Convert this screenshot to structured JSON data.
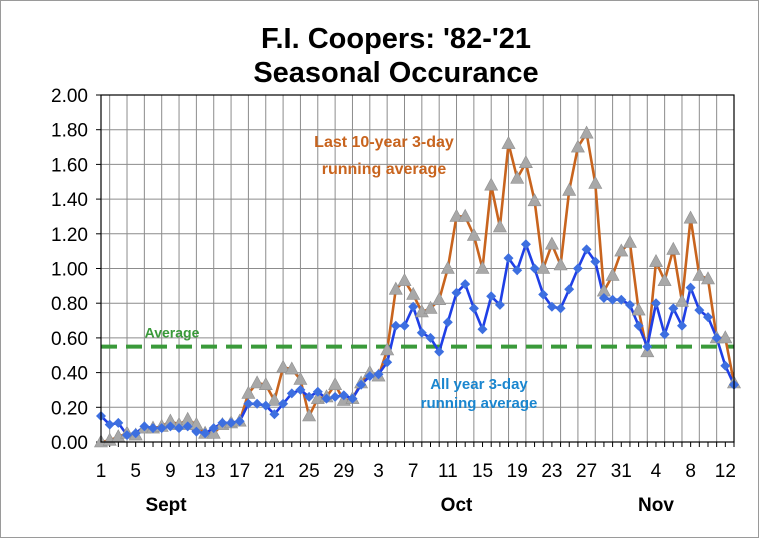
{
  "chart_data": {
    "type": "line",
    "title_lines": [
      "F.I. Coopers: '82-'21",
      "Seasonal Occurance"
    ],
    "ylim": [
      0,
      2.0
    ],
    "yticks": [
      "0.00",
      "0.20",
      "0.40",
      "0.60",
      "0.80",
      "1.00",
      "1.20",
      "1.40",
      "1.60",
      "1.80",
      "2.00"
    ],
    "xticks": [
      "1",
      "5",
      "9",
      "13",
      "17",
      "21",
      "25",
      "29",
      "3",
      "7",
      "11",
      "15",
      "19",
      "23",
      "27",
      "31",
      "4",
      "8",
      "12"
    ],
    "months": [
      "Sept",
      "Oct",
      "Nov"
    ],
    "grid": true,
    "average": {
      "label": "Average",
      "value": 0.55,
      "color": "#3a9a3a"
    },
    "series": [
      {
        "name": "Last 10-year 3-day running average",
        "label_lines": [
          "Last 10-year 3-day",
          "running average"
        ],
        "color": "#c8641e",
        "marker": "triangle",
        "marker_color": "#a8a8a8",
        "values": [
          0.0,
          0.01,
          0.03,
          0.05,
          0.04,
          0.08,
          0.08,
          0.09,
          0.12,
          0.1,
          0.13,
          0.1,
          0.05,
          0.05,
          0.1,
          0.11,
          0.12,
          0.28,
          0.34,
          0.33,
          0.24,
          0.43,
          0.42,
          0.36,
          0.15,
          0.25,
          0.26,
          0.33,
          0.24,
          0.25,
          0.34,
          0.4,
          0.38,
          0.53,
          0.88,
          0.93,
          0.85,
          0.75,
          0.77,
          0.82,
          1.0,
          1.3,
          1.3,
          1.19,
          1.0,
          1.48,
          1.24,
          1.72,
          1.52,
          1.61,
          1.39,
          1.0,
          1.14,
          1.02,
          1.45,
          1.7,
          1.78,
          1.49,
          0.87,
          0.96,
          1.1,
          1.15,
          0.76,
          0.52,
          1.04,
          0.93,
          1.11,
          0.81,
          1.29,
          0.96,
          0.94,
          0.6,
          0.6,
          0.34
        ]
      },
      {
        "name": "All year 3-day running average",
        "label_lines": [
          "All year 3-day",
          "running average"
        ],
        "color": "#1f3fe6",
        "marker": "diamond",
        "marker_color": "#3d6fe0",
        "values": [
          0.15,
          0.1,
          0.11,
          0.04,
          0.05,
          0.09,
          0.08,
          0.08,
          0.09,
          0.08,
          0.09,
          0.06,
          0.05,
          0.08,
          0.11,
          0.11,
          0.12,
          0.22,
          0.22,
          0.21,
          0.16,
          0.22,
          0.28,
          0.3,
          0.26,
          0.29,
          0.25,
          0.26,
          0.27,
          0.25,
          0.33,
          0.38,
          0.39,
          0.46,
          0.67,
          0.67,
          0.78,
          0.63,
          0.6,
          0.52,
          0.69,
          0.86,
          0.91,
          0.77,
          0.65,
          0.84,
          0.79,
          1.06,
          0.99,
          1.14,
          1.0,
          0.85,
          0.78,
          0.77,
          0.88,
          1.0,
          1.11,
          1.04,
          0.83,
          0.82,
          0.82,
          0.79,
          0.67,
          0.55,
          0.8,
          0.62,
          0.77,
          0.67,
          0.89,
          0.76,
          0.72,
          0.6,
          0.44,
          0.33
        ]
      }
    ]
  }
}
